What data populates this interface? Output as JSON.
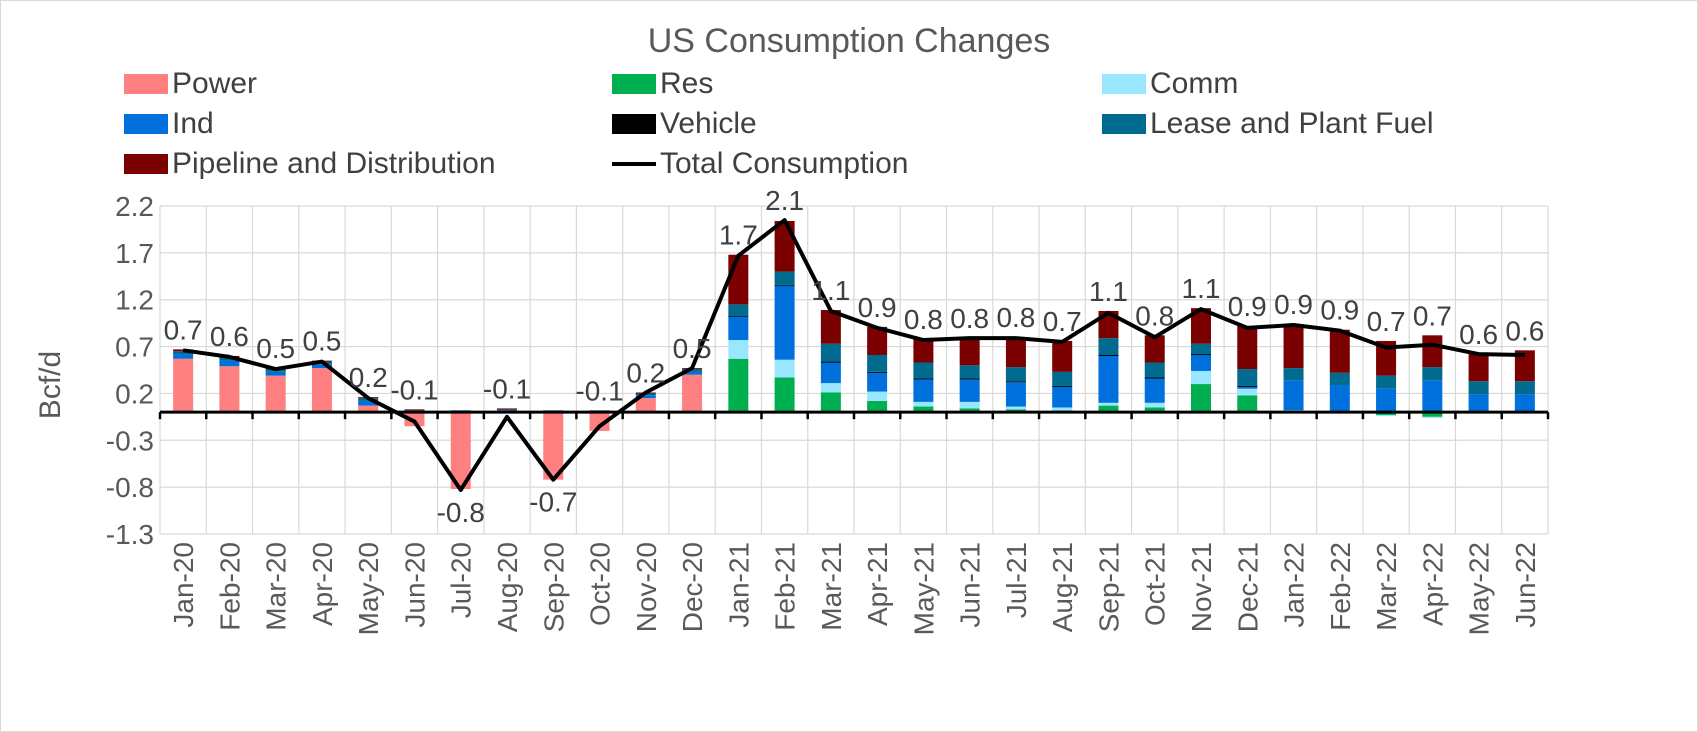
{
  "chart_data": {
    "type": "bar",
    "stacked": true,
    "title": "US Consumption Changes",
    "ylabel": "Bcf/d",
    "xlabel": "",
    "ylim": [
      -1.3,
      2.2
    ],
    "yticks": [
      "2.2",
      "1.7",
      "1.2",
      "0.7",
      "0.2",
      "-0.3",
      "-0.8",
      "-1.3"
    ],
    "ytick_values": [
      2.2,
      1.7,
      1.2,
      0.7,
      0.2,
      -0.3,
      -0.8,
      -1.3
    ],
    "grid": true,
    "legend_position": "top",
    "categories": [
      "Jan-20",
      "Feb-20",
      "Mar-20",
      "Apr-20",
      "May-20",
      "Jun-20",
      "Jul-20",
      "Aug-20",
      "Sep-20",
      "Oct-20",
      "Nov-20",
      "Dec-20",
      "Jan-21",
      "Feb-21",
      "Mar-21",
      "Apr-21",
      "May-21",
      "Jun-21",
      "Jul-21",
      "Aug-21",
      "Sep-21",
      "Oct-21",
      "Nov-21",
      "Dec-21",
      "Jan-22",
      "Feb-22",
      "Mar-22",
      "Apr-22",
      "May-22",
      "Jun-22"
    ],
    "series": [
      {
        "name": "Power",
        "color": "#ff8080",
        "values": [
          0.57,
          0.49,
          0.39,
          0.47,
          0.07,
          -0.15,
          -0.82,
          0.01,
          -0.72,
          -0.2,
          0.15,
          0.4,
          0,
          0,
          0,
          0,
          0,
          0,
          0,
          0,
          0,
          0,
          0,
          0,
          0,
          0,
          0,
          0,
          0,
          0
        ]
      },
      {
        "name": "Res",
        "color": "#00b050",
        "values": [
          0,
          0,
          0,
          0,
          0,
          0,
          0,
          0,
          0,
          0,
          0,
          0,
          0.57,
          0.37,
          0.21,
          0.12,
          0.06,
          0.04,
          0.03,
          0.02,
          0.07,
          0.05,
          0.3,
          0.18,
          0.01,
          0,
          -0.03,
          -0.05,
          0,
          -0.01
        ]
      },
      {
        "name": "Comm",
        "color": "#99e6ff",
        "values": [
          0,
          0,
          0,
          0,
          0,
          0,
          0,
          0,
          0,
          0,
          0,
          0,
          0.2,
          0.19,
          0.1,
          0.1,
          0.05,
          0.07,
          0.03,
          0.03,
          0.03,
          0.05,
          0.14,
          0.07,
          0.01,
          0,
          -0.01,
          -0.01,
          0,
          0
        ]
      },
      {
        "name": "Ind",
        "color": "#0070dd",
        "values": [
          0.05,
          0.06,
          0.04,
          0.04,
          0.05,
          0.01,
          0.01,
          0.01,
          0.01,
          0.01,
          0.03,
          0.03,
          0.25,
          0.79,
          0.22,
          0.2,
          0.24,
          0.24,
          0.26,
          0.22,
          0.5,
          0.26,
          0.17,
          0.02,
          0.32,
          0.29,
          0.25,
          0.34,
          0.19,
          0.19
        ]
      },
      {
        "name": "Vehicle",
        "color": "#000000",
        "values": [
          0,
          0,
          0,
          0,
          0,
          0,
          0,
          0,
          0,
          0,
          0,
          0,
          0.01,
          0.01,
          0.01,
          0.01,
          0.01,
          0.01,
          0.01,
          0.01,
          0.01,
          0.01,
          0.01,
          0.01,
          0,
          0,
          0,
          0,
          0,
          0
        ]
      },
      {
        "name": "Lease and Plant Fuel",
        "color": "#006b8f",
        "values": [
          0.03,
          0.03,
          0.03,
          0.03,
          0.03,
          0.01,
          0.01,
          0.01,
          0.01,
          0.01,
          0.02,
          0.03,
          0.12,
          0.14,
          0.19,
          0.18,
          0.17,
          0.14,
          0.15,
          0.15,
          0.18,
          0.16,
          0.11,
          0.18,
          0.13,
          0.13,
          0.14,
          0.14,
          0.14,
          0.14
        ]
      },
      {
        "name": "Pipeline and Distribution",
        "color": "#7b0000",
        "values": [
          0.02,
          0.02,
          0.01,
          0.01,
          0.01,
          0.01,
          0,
          0.01,
          0,
          0,
          0.01,
          0.01,
          0.53,
          0.54,
          0.36,
          0.3,
          0.25,
          0.28,
          0.32,
          0.33,
          0.29,
          0.29,
          0.38,
          0.46,
          0.47,
          0.46,
          0.37,
          0.34,
          0.29,
          0.33
        ]
      }
    ],
    "line": {
      "name": "Total Consumption",
      "color": "#000000",
      "values": [
        0.66,
        0.59,
        0.46,
        0.54,
        0.15,
        -0.1,
        -0.83,
        -0.05,
        -0.72,
        -0.15,
        0.21,
        0.47,
        1.67,
        2.05,
        1.08,
        0.9,
        0.77,
        0.79,
        0.79,
        0.75,
        1.06,
        0.8,
        1.1,
        0.9,
        0.93,
        0.87,
        0.69,
        0.72,
        0.62,
        0.61
      ]
    },
    "data_labels": [
      "0.7",
      "0.6",
      "0.5",
      "0.5",
      "0.2",
      "-0.1",
      "-0.8",
      "-0.1",
      "-0.7",
      "-0.1",
      "0.2",
      "0.5",
      "1.7",
      "2.1",
      "1.1",
      "0.9",
      "0.8",
      "0.8",
      "0.8",
      "0.7",
      "1.1",
      "0.8",
      "1.1",
      "0.9",
      "0.9",
      "0.9",
      "0.7",
      "0.7",
      "0.6",
      "0.6"
    ]
  }
}
